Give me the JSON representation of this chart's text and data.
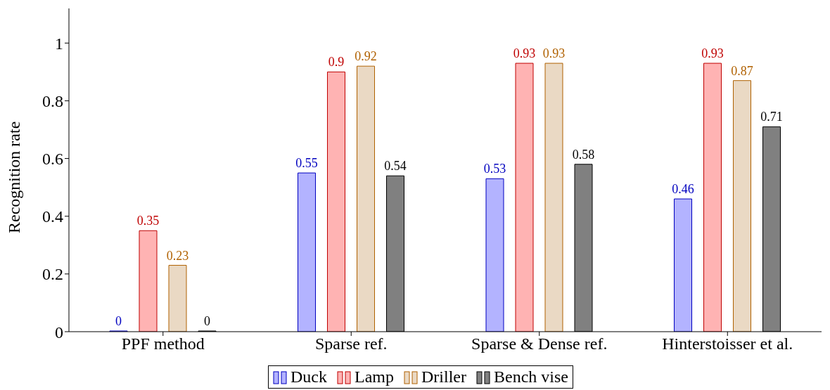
{
  "chart_data": {
    "type": "bar",
    "ylabel": "Recognition rate",
    "categories": [
      "PPF method",
      "Sparse ref.",
      "Sparse & Dense ref.",
      "Hinterstoisser et al."
    ],
    "series": [
      {
        "name": "Duck",
        "color": "#b3b3ff",
        "values": [
          0,
          0.55,
          0.53,
          0.46
        ]
      },
      {
        "name": "Lamp",
        "color": "#ffb3b3",
        "values": [
          0.35,
          0.9,
          0.93,
          0.93
        ]
      },
      {
        "name": "Driller",
        "color": "#ead9c4",
        "values": [
          0.23,
          0.92,
          0.93,
          0.87
        ]
      },
      {
        "name": "Bench vise",
        "color": "#808080",
        "values": [
          0,
          0.54,
          0.58,
          0.71
        ]
      }
    ],
    "ylim": [
      0,
      1.12
    ],
    "yticks": [
      0,
      0.2,
      0.4,
      0.6,
      0.8,
      1
    ],
    "data_labels": true,
    "legend": "bottom",
    "grid": false
  }
}
